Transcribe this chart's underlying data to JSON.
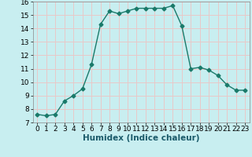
{
  "x": [
    0,
    1,
    2,
    3,
    4,
    5,
    6,
    7,
    8,
    9,
    10,
    11,
    12,
    13,
    14,
    15,
    16,
    17,
    18,
    19,
    20,
    21,
    22,
    23
  ],
  "y": [
    7.6,
    7.5,
    7.6,
    8.6,
    9.0,
    9.5,
    11.3,
    14.3,
    15.3,
    15.1,
    15.3,
    15.5,
    15.5,
    15.5,
    15.5,
    15.7,
    14.2,
    11.0,
    11.1,
    10.9,
    10.5,
    9.8,
    9.4,
    9.4
  ],
  "xlabel": "Humidex (Indice chaleur)",
  "xlim": [
    -0.5,
    23.5
  ],
  "ylim": [
    7,
    16
  ],
  "yticks": [
    7,
    8,
    9,
    10,
    11,
    12,
    13,
    14,
    15,
    16
  ],
  "xticks": [
    0,
    1,
    2,
    3,
    4,
    5,
    6,
    7,
    8,
    9,
    10,
    11,
    12,
    13,
    14,
    15,
    16,
    17,
    18,
    19,
    20,
    21,
    22,
    23
  ],
  "line_color": "#1a7a6a",
  "bg_color": "#c8eef0",
  "grid_color": "#e8c8c8",
  "marker": "D",
  "marker_size": 2.5,
  "line_width": 1.0,
  "label_fontsize": 7.5,
  "tick_fontsize": 6.5
}
